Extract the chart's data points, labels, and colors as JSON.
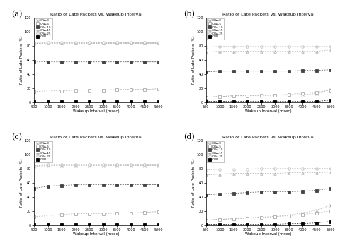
{
  "title": "Ratio of Late Packets vs. Wakeup Interval",
  "xlabel": "Wakeup Interval (msec)",
  "ylabel": "Ratio of Late Packets (%)",
  "x": [
    500,
    1000,
    1500,
    2000,
    2500,
    3000,
    3500,
    4000,
    4500,
    5000
  ],
  "ylim": [
    0,
    120
  ],
  "yticks": [
    0,
    20,
    40,
    60,
    80,
    100,
    120
  ],
  "labels": [
    "ORA-0",
    "ORA-5",
    "ORA-10",
    "ORA-15",
    "ORA-25",
    "ORD"
  ],
  "subplots": [
    {
      "panel": "(a)",
      "series": [
        {
          "values": [
            83,
            84,
            84,
            84,
            84,
            84,
            84,
            84,
            84,
            84
          ],
          "marker": "x",
          "color": "#aaaaaa",
          "fillstyle": "full"
        },
        {
          "values": [
            15,
            16,
            16,
            17,
            17,
            17,
            18,
            18,
            18,
            19
          ],
          "marker": "s",
          "color": "#aaaaaa",
          "fillstyle": "none"
        },
        {
          "values": [
            58,
            57,
            57,
            57,
            57,
            57,
            57,
            57,
            57,
            57
          ],
          "marker": "s",
          "color": "#444444",
          "fillstyle": "full"
        },
        {
          "values": [
            84,
            84,
            84,
            84,
            84,
            84,
            84,
            84,
            84,
            84
          ],
          "marker": "^",
          "color": "#aaaaaa",
          "fillstyle": "none"
        },
        {
          "values": [
            85,
            85,
            85,
            85,
            85,
            85,
            85,
            85,
            85,
            85
          ],
          "marker": "o",
          "color": "#bbbbbb",
          "fillstyle": "none"
        },
        {
          "values": [
            1,
            1,
            1,
            1,
            1,
            1,
            1,
            1,
            1,
            1
          ],
          "marker": "s",
          "color": "#000000",
          "fillstyle": "full"
        }
      ]
    },
    {
      "panel": "(b)",
      "series": [
        {
          "values": [
            7,
            8,
            9,
            9,
            9,
            10,
            10,
            11,
            12,
            18
          ],
          "marker": "x",
          "color": "#aaaaaa",
          "fillstyle": "full"
        },
        {
          "values": [
            7,
            8,
            9,
            9,
            10,
            10,
            11,
            13,
            14,
            17
          ],
          "marker": "s",
          "color": "#aaaaaa",
          "fillstyle": "none"
        },
        {
          "values": [
            43,
            44,
            44,
            44,
            44,
            44,
            44,
            45,
            45,
            46
          ],
          "marker": "s",
          "color": "#444444",
          "fillstyle": "full"
        },
        {
          "values": [
            71,
            72,
            72,
            72,
            72,
            72,
            72,
            72,
            72,
            74
          ],
          "marker": "^",
          "color": "#aaaaaa",
          "fillstyle": "none"
        },
        {
          "values": [
            78,
            79,
            79,
            79,
            79,
            79,
            79,
            79,
            79,
            79
          ],
          "marker": "o",
          "color": "#bbbbbb",
          "fillstyle": "none"
        },
        {
          "values": [
            1,
            1,
            1,
            1,
            1,
            1,
            1,
            1,
            1,
            3
          ],
          "marker": "s",
          "color": "#000000",
          "fillstyle": "full"
        }
      ]
    },
    {
      "panel": "(c)",
      "series": [
        {
          "values": [
            83,
            84,
            84,
            84,
            84,
            84,
            84,
            84,
            84,
            84
          ],
          "marker": "x",
          "color": "#aaaaaa",
          "fillstyle": "full"
        },
        {
          "values": [
            12,
            13,
            15,
            16,
            16,
            16,
            17,
            17,
            18,
            19
          ],
          "marker": "s",
          "color": "#aaaaaa",
          "fillstyle": "none"
        },
        {
          "values": [
            52,
            55,
            56,
            57,
            57,
            57,
            57,
            57,
            57,
            57
          ],
          "marker": "s",
          "color": "#444444",
          "fillstyle": "full"
        },
        {
          "values": [
            84,
            85,
            85,
            85,
            85,
            85,
            85,
            85,
            85,
            85
          ],
          "marker": "^",
          "color": "#aaaaaa",
          "fillstyle": "none"
        },
        {
          "values": [
            85,
            86,
            86,
            86,
            86,
            86,
            86,
            86,
            86,
            86
          ],
          "marker": "o",
          "color": "#bbbbbb",
          "fillstyle": "none"
        },
        {
          "values": [
            1,
            1,
            1,
            1,
            1,
            1,
            1,
            1,
            1,
            1
          ],
          "marker": "s",
          "color": "#000000",
          "fillstyle": "full"
        }
      ]
    },
    {
      "panel": "(d)",
      "series": [
        {
          "values": [
            7,
            8,
            9,
            10,
            11,
            12,
            14,
            17,
            21,
            28
          ],
          "marker": "x",
          "color": "#aaaaaa",
          "fillstyle": "full"
        },
        {
          "values": [
            7,
            8,
            9,
            10,
            11,
            12,
            13,
            15,
            17,
            20
          ],
          "marker": "s",
          "color": "#aaaaaa",
          "fillstyle": "none"
        },
        {
          "values": [
            43,
            44,
            45,
            46,
            47,
            47,
            47,
            48,
            49,
            52
          ],
          "marker": "s",
          "color": "#444444",
          "fillstyle": "full"
        },
        {
          "values": [
            71,
            72,
            73,
            73,
            73,
            73,
            74,
            74,
            74,
            75
          ],
          "marker": "^",
          "color": "#aaaaaa",
          "fillstyle": "none"
        },
        {
          "values": [
            78,
            79,
            79,
            79,
            80,
            80,
            80,
            80,
            80,
            80
          ],
          "marker": "o",
          "color": "#bbbbbb",
          "fillstyle": "none"
        },
        {
          "values": [
            1,
            1,
            1,
            1,
            1,
            1,
            2,
            2,
            3,
            5
          ],
          "marker": "s",
          "color": "#000000",
          "fillstyle": "full"
        }
      ]
    }
  ]
}
